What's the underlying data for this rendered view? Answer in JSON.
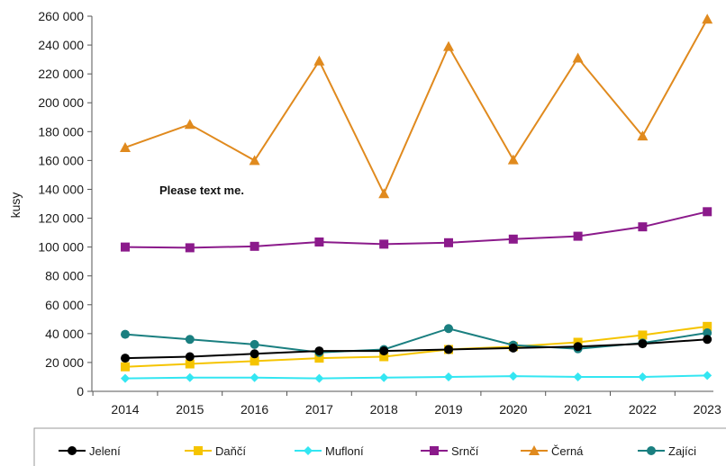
{
  "chart_data": {
    "type": "line",
    "title": "",
    "xlabel": "",
    "ylabel": "kusy",
    "ylim": [
      0,
      260000
    ],
    "y_ticks": [
      "0",
      "20 000",
      "40 000",
      "60 000",
      "80 000",
      "100 000",
      "120 000",
      "140 000",
      "160 000",
      "180 000",
      "200 000",
      "220 000",
      "240 000",
      "260 000"
    ],
    "y_step": 20000,
    "categories": [
      "2014",
      "2015",
      "2016",
      "2017",
      "2018",
      "2019",
      "2020",
      "2021",
      "2022",
      "2023"
    ],
    "grid": false,
    "legend_position": "bottom",
    "annotation": "Please text me.",
    "series": [
      {
        "name": "Jelení",
        "color": "#000000",
        "marker": "circle",
        "values": [
          23000,
          24000,
          26000,
          28000,
          28000,
          29000,
          30000,
          31000,
          33000,
          36000
        ]
      },
      {
        "name": "Daňčí",
        "color": "#f5c400",
        "marker": "square",
        "values": [
          17000,
          19000,
          21000,
          23000,
          24000,
          29000,
          31000,
          34000,
          39000,
          45000
        ]
      },
      {
        "name": "Mufloní",
        "color": "#33e6f2",
        "marker": "diamond",
        "values": [
          9000,
          9500,
          9500,
          9000,
          9500,
          10000,
          10500,
          10000,
          10000,
          11000
        ]
      },
      {
        "name": "Srnčí",
        "color": "#8b1a8b",
        "marker": "square",
        "values": [
          100000,
          99500,
          100500,
          103500,
          102000,
          103000,
          105500,
          107500,
          114000,
          124500
        ]
      },
      {
        "name": "Černá",
        "color": "#e08a1e",
        "marker": "triangle",
        "values": [
          169000,
          185000,
          160000,
          229000,
          137000,
          239000,
          160500,
          231000,
          177000,
          258000
        ]
      },
      {
        "name": "Zajíci",
        "color": "#1a7f80",
        "marker": "circle",
        "values": [
          39500,
          36000,
          32500,
          27000,
          29000,
          43500,
          32000,
          29500,
          33500,
          40500
        ]
      }
    ]
  }
}
